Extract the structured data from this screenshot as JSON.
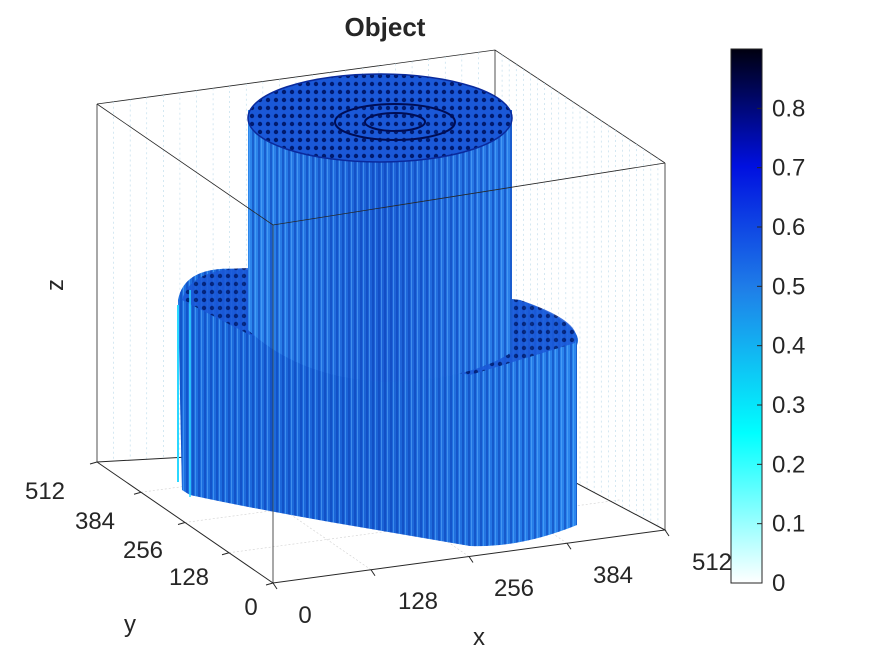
{
  "figure": {
    "title": "Object"
  },
  "chart_data": {
    "type": "3d-bar",
    "title": "Object",
    "xlabel": "x",
    "ylabel": "y",
    "zlabel": "z",
    "x_ticks": [
      "0",
      "128",
      "256",
      "384",
      "512"
    ],
    "y_ticks": [
      "0",
      "128",
      "256",
      "384",
      "512"
    ],
    "xlim": [
      0,
      512
    ],
    "ylim": [
      0,
      512
    ],
    "grid": true,
    "colormap": [
      "#ffffff",
      "#00ffff",
      "#0066ff",
      "#0000cc",
      "#000000"
    ],
    "colorbar": {
      "ticks": [
        "0",
        "0.1",
        "0.2",
        "0.3",
        "0.4",
        "0.5",
        "0.6",
        "0.7",
        "0.8"
      ],
      "range": [
        0,
        0.9
      ]
    },
    "shapes": [
      {
        "name": "base-cylinder",
        "color_value": 0.55
      },
      {
        "name": "top-cylinder",
        "color_value": 0.6
      }
    ]
  }
}
